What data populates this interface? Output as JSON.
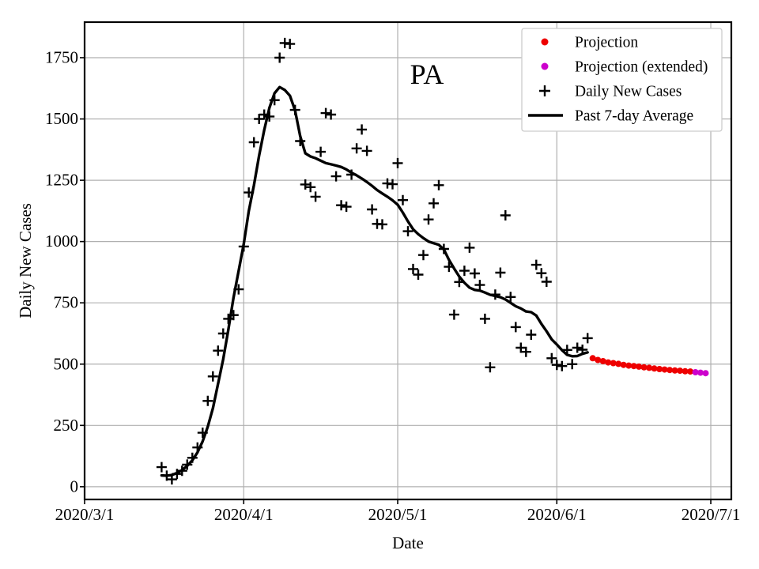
{
  "chart_data": {
    "type": "scatter",
    "title": "PA",
    "xlabel": "Date",
    "ylabel": "Daily New Cases",
    "x_tick_labels": [
      "2020/3/1",
      "2020/4/1",
      "2020/5/1",
      "2020/6/1",
      "2020/7/1"
    ],
    "y_tick_values": [
      0,
      250,
      500,
      750,
      1000,
      1250,
      1500,
      1750
    ],
    "xlim": [
      "2020/3/1",
      "2020/7/5"
    ],
    "ylim": [
      -52,
      1895
    ],
    "grid": true,
    "grid_color": "#b0b0b0",
    "legend_position": "upper right",
    "series": [
      {
        "name": "Projection",
        "marker": "dot",
        "color": "#ee0000",
        "start_date": "2020/6/8",
        "values": [
          524,
          517,
          512,
          507,
          504,
          501,
          497,
          494,
          492,
          490,
          487,
          485,
          482,
          480,
          478,
          476,
          474,
          473,
          471,
          470
        ]
      },
      {
        "name": "Projection (extended)",
        "marker": "dot",
        "color": "#cc00cc",
        "start_date": "2020/6/28",
        "values": [
          467,
          465,
          463
        ]
      },
      {
        "name": "Daily New Cases",
        "marker": "plus",
        "color": "#000000",
        "start_date": "2020/3/16",
        "values": [
          80,
          45,
          30,
          52,
          65,
          90,
          118,
          160,
          220,
          350,
          450,
          555,
          625,
          685,
          700,
          805,
          980,
          1200,
          1405,
          1500,
          1518,
          1510,
          1577,
          1750,
          1810,
          1806,
          1537,
          1410,
          1233,
          1222,
          1183,
          1366,
          1524,
          1518,
          1266,
          1148,
          1142,
          1273,
          1380,
          1457,
          1370,
          1131,
          1072,
          1070,
          1237,
          1234,
          1320,
          1169,
          1042,
          888,
          865,
          945,
          1090,
          1156,
          1230,
          970,
          897,
          702,
          835,
          881,
          975,
          870,
          823,
          685,
          487,
          784,
          873,
          1107,
          774,
          651,
          567,
          550,
          620,
          905,
          871,
          836,
          524,
          497,
          492,
          558,
          500,
          567,
          559,
          606
        ]
      },
      {
        "name": "Past 7-day Average",
        "marker": "line",
        "color": "#000000",
        "start_date": "2020/3/16",
        "values": [
          46,
          45,
          48,
          56,
          68,
          85,
          108,
          140,
          185,
          245,
          320,
          420,
          520,
          640,
          770,
          880,
          990,
          1125,
          1230,
          1350,
          1455,
          1545,
          1605,
          1630,
          1618,
          1595,
          1535,
          1430,
          1360,
          1347,
          1340,
          1330,
          1320,
          1315,
          1310,
          1304,
          1294,
          1281,
          1270,
          1257,
          1243,
          1227,
          1210,
          1196,
          1183,
          1168,
          1150,
          1118,
          1082,
          1050,
          1030,
          1014,
          1000,
          993,
          987,
          968,
          925,
          890,
          857,
          832,
          812,
          803,
          800,
          792,
          783,
          778,
          773,
          764,
          750,
          736,
          727,
          715,
          712,
          698,
          664,
          634,
          601,
          580,
          557,
          538,
          532,
          533,
          542,
          548
        ]
      }
    ]
  }
}
